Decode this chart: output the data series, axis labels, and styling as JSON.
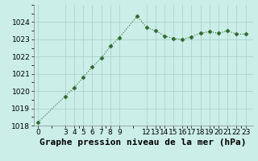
{
  "x": [
    0,
    3,
    4,
    5,
    6,
    7,
    8,
    9,
    11,
    12,
    13,
    14,
    15,
    16,
    17,
    18,
    19,
    20,
    21,
    22,
    23
  ],
  "y": [
    1018.2,
    1019.7,
    1020.2,
    1020.8,
    1021.4,
    1021.9,
    1022.6,
    1023.1,
    1024.35,
    1023.7,
    1023.5,
    1023.2,
    1023.05,
    1023.0,
    1023.15,
    1023.35,
    1023.45,
    1023.35,
    1023.5,
    1023.3,
    1023.3
  ],
  "line_color": "#2d6a2d",
  "marker": "D",
  "marker_size": 2.5,
  "bg_color": "#cceee8",
  "grid_color": "#aad4cc",
  "xlabel": "Graphe pression niveau de la mer (hPa)",
  "ylim": [
    1018,
    1025
  ],
  "yticks": [
    1018,
    1019,
    1020,
    1021,
    1022,
    1023,
    1024
  ],
  "xticks": [
    0,
    3,
    4,
    5,
    6,
    7,
    8,
    9,
    12,
    13,
    14,
    15,
    16,
    17,
    18,
    19,
    20,
    21,
    22,
    23
  ],
  "xtick_labels": [
    "0",
    "3",
    "4",
    "5",
    "6",
    "7",
    "8",
    "9",
    "12",
    "13",
    "14",
    "15",
    "16",
    "17",
    "18",
    "19",
    "20",
    "21",
    "22",
    "23"
  ],
  "tick_fontsize": 6.5,
  "xlabel_fontsize": 8,
  "line_width": 0.8,
  "xlim": [
    -0.5,
    23.8
  ]
}
